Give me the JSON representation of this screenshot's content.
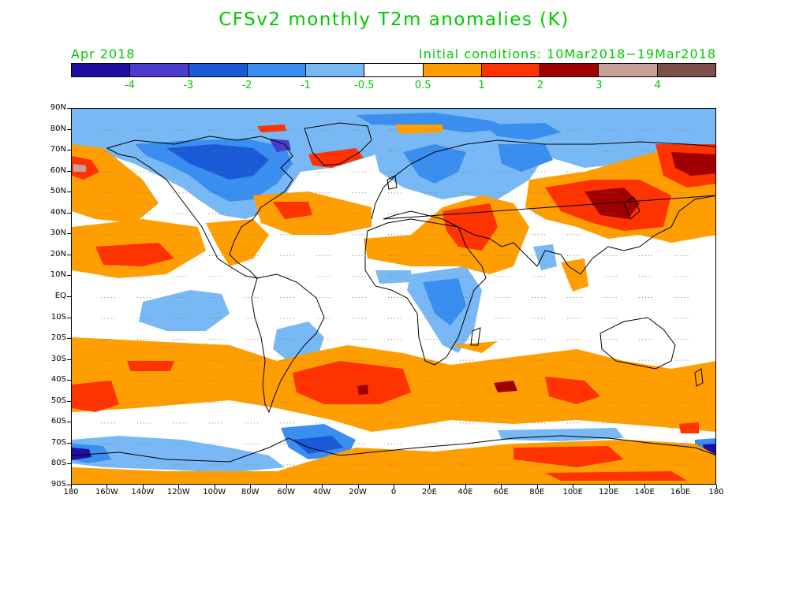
{
  "title": "CFSv2 monthly T2m anomalies (K)",
  "forecast_month": "Apr 2018",
  "initial_conditions": "Initial conditions: 10Mar2018−19Mar2018",
  "colorbar": {
    "colors": [
      "#1e0fa0",
      "#4a3ccf",
      "#1a5ad6",
      "#3a8ef0",
      "#78b9f5",
      "#ffffff",
      "#ff9e00",
      "#ff3300",
      "#a00000",
      "#c8a09a",
      "#7a5048"
    ],
    "labels": [
      "-4",
      "-3",
      "-2",
      "-1",
      "-0.5",
      "0.5",
      "1",
      "2",
      "3",
      "4"
    ]
  },
  "axes": {
    "lat_labels": [
      "90N",
      "80N",
      "70N",
      "60N",
      "50N",
      "40N",
      "30N",
      "20N",
      "10N",
      "EQ",
      "10S",
      "20S",
      "30S",
      "40S",
      "50S",
      "60S",
      "70S",
      "80S",
      "90S"
    ],
    "lon_labels": [
      "180",
      "160W",
      "140W",
      "120W",
      "100W",
      "80W",
      "60W",
      "40W",
      "20W",
      "0",
      "20E",
      "40E",
      "60E",
      "80E",
      "100E",
      "120E",
      "140E",
      "160E",
      "180"
    ]
  },
  "legend_values_K": [
    -4,
    -3,
    -2,
    -1,
    -0.5,
    0.5,
    1,
    2,
    3,
    4
  ]
}
